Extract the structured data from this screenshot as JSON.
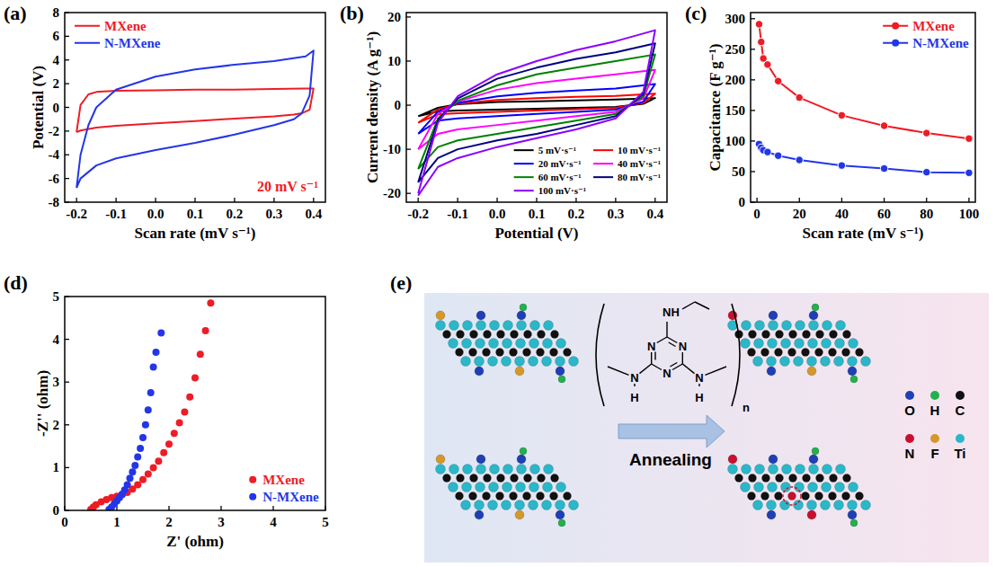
{
  "chart_data": [
    {
      "type": "line",
      "panel_label": "(a)",
      "xlabel": "Scan rate (mV s⁻¹)",
      "ylabel": "Potential (V)",
      "annotation": "20 mV s⁻¹",
      "x": [
        -0.2,
        -0.19,
        -0.17,
        -0.15,
        -0.1,
        0,
        0.1,
        0.2,
        0.3,
        0.38,
        0.4,
        0.4,
        0.39,
        0.37,
        0.35,
        0.3,
        0.2,
        0.1,
        0,
        -0.1,
        -0.15,
        -0.19,
        -0.2
      ],
      "series": [
        {
          "name": "MXene",
          "color": "#ee1c25",
          "values": [
            -2.1,
            0.2,
            1.1,
            1.3,
            1.4,
            1.45,
            1.5,
            1.5,
            1.55,
            1.6,
            1.6,
            1.6,
            -0.2,
            -0.5,
            -0.6,
            -0.75,
            -0.95,
            -1.15,
            -1.35,
            -1.55,
            -1.7,
            -1.95,
            -2.1
          ]
        },
        {
          "name": "N-MXene",
          "color": "#2336e8",
          "values": [
            -6.8,
            -4,
            -1.5,
            0,
            1.5,
            2.6,
            3.2,
            3.6,
            3.9,
            4.3,
            4.8,
            4.8,
            1,
            -0.5,
            -1,
            -1.5,
            -2.3,
            -3,
            -3.6,
            -4.3,
            -4.9,
            -6,
            -6.8
          ]
        }
      ],
      "xlim": [
        -0.23,
        0.43
      ],
      "ylim": [
        -8,
        8
      ],
      "xticks": [
        -0.2,
        -0.1,
        {
          "value": 0,
          "label": "0.0"
        },
        0.1,
        0.2,
        0.3,
        0.4
      ],
      "yticks": [
        -8,
        -6,
        -4,
        -2,
        0,
        2,
        4,
        6,
        8
      ],
      "legend": "upper left"
    },
    {
      "type": "line",
      "panel_label": "(b)",
      "xlabel": "Potential (V)",
      "ylabel": "Current density (A g⁻¹)",
      "x": [
        -0.2,
        -0.15,
        -0.1,
        0,
        0.1,
        0.2,
        0.3,
        0.4,
        0.4,
        0.37,
        0.3,
        0.2,
        0.1,
        0,
        -0.1,
        -0.15,
        -0.2
      ],
      "series": [
        {
          "name": "5 mV·s⁻¹",
          "color": "#000000",
          "values": [
            -2.5,
            -0.6,
            0.2,
            0.7,
            0.9,
            1.1,
            1.3,
            1.6,
            1.6,
            0.3,
            -0.4,
            -0.6,
            -0.8,
            -1.0,
            -1.2,
            -1.4,
            -2.5
          ]
        },
        {
          "name": "10 mV·s⁻¹",
          "color": "#ff0000",
          "values": [
            -4,
            -1,
            0.3,
            1.2,
            1.6,
            1.9,
            2.1,
            2.6,
            2.6,
            0.5,
            -0.6,
            -0.9,
            -1.2,
            -1.5,
            -1.8,
            -2.1,
            -4
          ]
        },
        {
          "name": "20 mV·s⁻¹",
          "color": "#0000ff",
          "values": [
            -6.5,
            -1.5,
            0.5,
            2,
            2.8,
            3.3,
            3.8,
            4.8,
            4.8,
            0.8,
            -1,
            -1.5,
            -2,
            -2.5,
            -3,
            -3.5,
            -6.5
          ]
        },
        {
          "name": "40 mV·s⁻¹",
          "color": "#ff00ff",
          "values": [
            -10,
            -2,
            0.8,
            3.5,
            5,
            6,
            7,
            8,
            8,
            1.5,
            -1.5,
            -2.5,
            -3.5,
            -4.5,
            -5.5,
            -6.5,
            -10
          ]
        },
        {
          "name": "60 mV·s⁻¹",
          "color": "#008000",
          "values": [
            -14.5,
            -3,
            1,
            4.5,
            7,
            8.5,
            10,
            11.5,
            11.5,
            2,
            -2,
            -3.5,
            -5,
            -6.5,
            -8,
            -9.5,
            -14.5
          ]
        },
        {
          "name": "80 mV·s⁻¹",
          "color": "#000080",
          "values": [
            -17.5,
            -3.5,
            1.5,
            6,
            8.5,
            10.5,
            12,
            14,
            14,
            2.5,
            -2.5,
            -4.5,
            -6.5,
            -8,
            -10,
            -12,
            -17.5
          ]
        },
        {
          "name": "100 mV·s⁻¹",
          "color": "#8b00ff",
          "values": [
            -20,
            -4,
            2,
            7,
            10,
            12.5,
            14.5,
            17,
            17,
            3,
            -3,
            -5.5,
            -7.5,
            -9.5,
            -12,
            -14,
            -20.5
          ]
        }
      ],
      "xlim": [
        -0.23,
        0.43
      ],
      "ylim": [
        -22,
        21
      ],
      "xticks": [
        -0.2,
        -0.1,
        {
          "value": 0,
          "label": "0.0"
        },
        0.1,
        0.2,
        0.3,
        0.4
      ],
      "yticks": [
        -20,
        -10,
        0,
        10,
        20
      ],
      "legend": "lower right"
    },
    {
      "type": "line",
      "marker": "circle",
      "panel_label": "(c)",
      "xlabel": "Scan rate (mV s⁻¹)",
      "ylabel": "Capacitance (F g⁻¹)",
      "x": [
        1,
        2,
        3,
        5,
        10,
        20,
        40,
        60,
        80,
        100
      ],
      "series": [
        {
          "name": "MXene",
          "color": "#ee1c25",
          "values": [
            291,
            262,
            235,
            225,
            198,
            171,
            142,
            125,
            113,
            104
          ]
        },
        {
          "name": "N-MXene",
          "color": "#2336e8",
          "values": [
            95,
            89,
            85,
            82,
            76,
            69,
            60,
            55,
            49,
            48
          ]
        }
      ],
      "xlim": [
        -3,
        103
      ],
      "ylim": [
        0,
        310
      ],
      "xticks": [
        0,
        20,
        40,
        60,
        80,
        100
      ],
      "yticks": [
        0,
        50,
        100,
        150,
        200,
        250,
        300
      ],
      "legend": "upper right"
    },
    {
      "type": "scatter",
      "marker": "circle",
      "panel_label": "(d)",
      "xlabel": "Z' (ohm)",
      "ylabel": "-Z'' (ohm)",
      "series": [
        {
          "name": "MXene",
          "color": "#ee1c25",
          "x": [
            0.5,
            0.55,
            0.6,
            0.7,
            0.8,
            0.9,
            1.0,
            1.1,
            1.2,
            1.3,
            1.4,
            1.5,
            1.6,
            1.7,
            1.8,
            1.9,
            2.0,
            2.1,
            2.2,
            2.3,
            2.4,
            2.5,
            2.6,
            2.7,
            2.8
          ],
          "values": [
            0.02,
            0.08,
            0.13,
            0.2,
            0.25,
            0.3,
            0.33,
            0.37,
            0.42,
            0.5,
            0.6,
            0.72,
            0.85,
            1.0,
            1.15,
            1.35,
            1.55,
            1.8,
            2.05,
            2.3,
            2.65,
            3.1,
            3.65,
            4.2,
            4.85
          ]
        },
        {
          "name": "N-MXene",
          "color": "#2336e8",
          "x": [
            0.85,
            0.9,
            0.95,
            1.0,
            1.05,
            1.1,
            1.15,
            1.2,
            1.25,
            1.3,
            1.35,
            1.4,
            1.45,
            1.5,
            1.55,
            1.6,
            1.65,
            1.7,
            1.75,
            1.85
          ],
          "values": [
            0.02,
            0.08,
            0.15,
            0.22,
            0.3,
            0.38,
            0.48,
            0.6,
            0.75,
            0.9,
            1.05,
            1.25,
            1.45,
            1.7,
            2.0,
            2.35,
            2.75,
            3.35,
            3.7,
            4.15
          ]
        }
      ],
      "xlim": [
        0,
        5
      ],
      "ylim": [
        0,
        5
      ],
      "xticks": [
        0,
        1,
        2,
        3,
        4,
        5
      ],
      "yticks": [
        0,
        1,
        2,
        3,
        4,
        5
      ],
      "legend": "lower right"
    }
  ],
  "diagram": {
    "panel_label": "(e)",
    "arrow_label": "Annealing",
    "structure": {
      "ring_atoms": [
        "N",
        "N",
        "N"
      ],
      "top_group": "NH",
      "side_atoms": [
        "N",
        "N"
      ],
      "side_hydrogens": [
        "H",
        "H"
      ],
      "repeat_unit": "n"
    },
    "legend": [
      {
        "symbol": "O",
        "color": "#1f3fb4"
      },
      {
        "symbol": "H",
        "color": "#22b14c"
      },
      {
        "symbol": "C",
        "color": "#111111"
      },
      {
        "symbol": "N",
        "color": "#c8102e"
      },
      {
        "symbol": "F",
        "color": "#d4982a"
      },
      {
        "symbol": "Ti",
        "color": "#2ab7c9"
      }
    ]
  }
}
